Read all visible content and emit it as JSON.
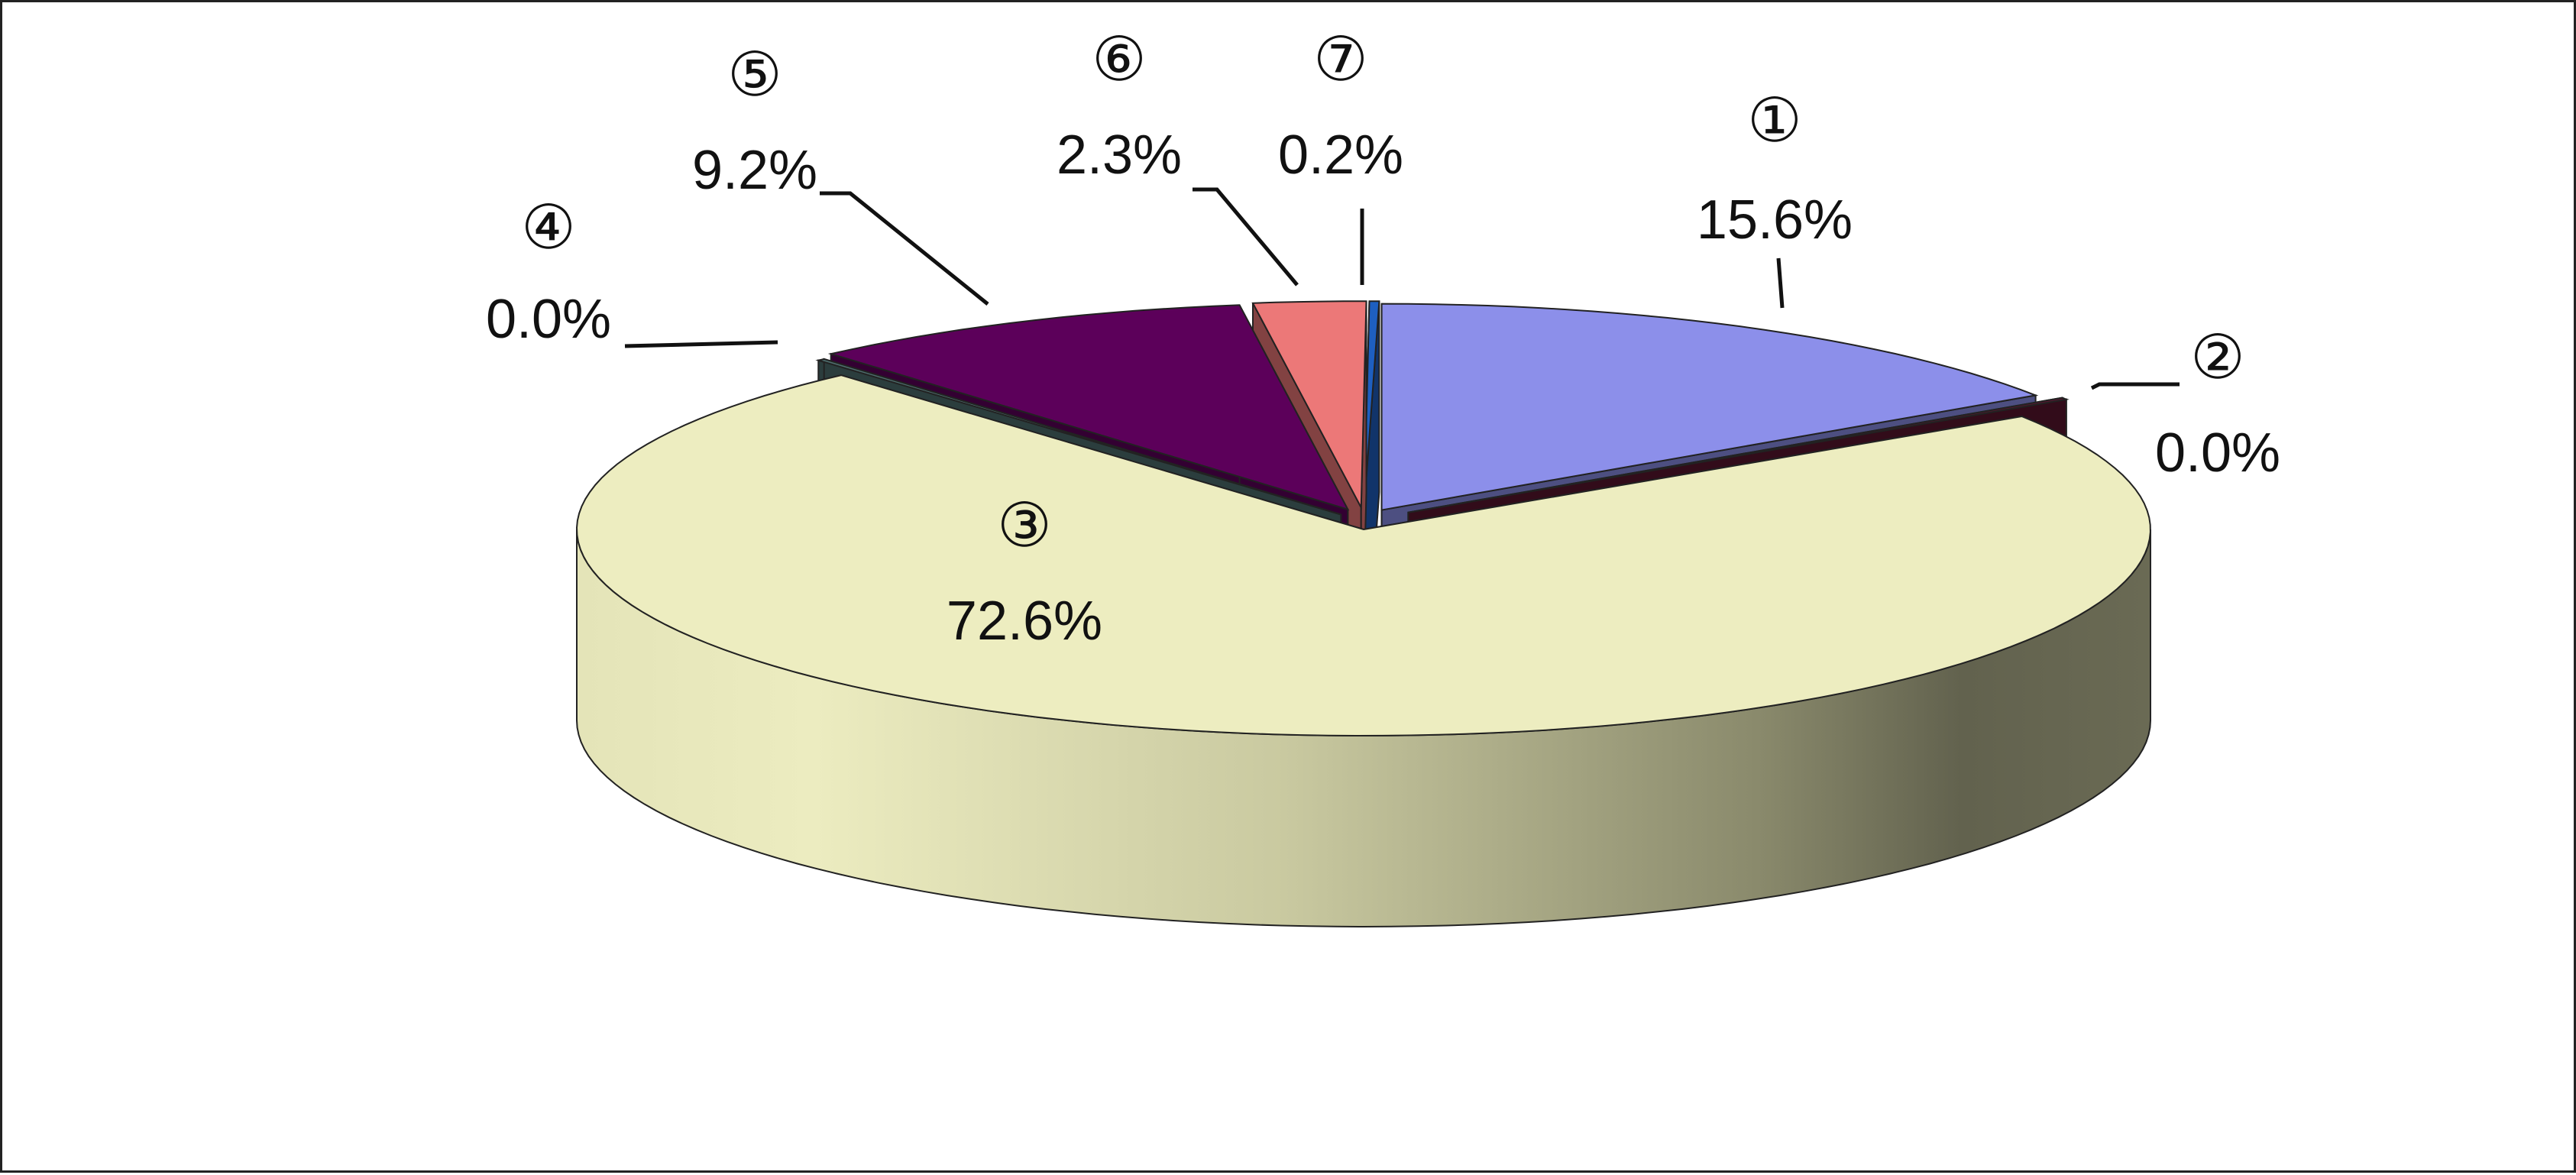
{
  "chart_data": {
    "type": "pie",
    "style": "3d-exploded",
    "legend": "none",
    "slices": [
      {
        "marker": "①",
        "value": 15.6,
        "label": "15.6%",
        "color": "#8C8FEA"
      },
      {
        "marker": "②",
        "value": 0.0,
        "label": "0.0%",
        "color": "#5A1530"
      },
      {
        "marker": "③",
        "value": 72.6,
        "label": "72.6%",
        "color": "#EDEDC0"
      },
      {
        "marker": "④",
        "value": 0.0,
        "label": "0.0%",
        "color": "#4E6E6E"
      },
      {
        "marker": "⑤",
        "value": 9.2,
        "label": "9.2%",
        "color": "#5C005A"
      },
      {
        "marker": "⑥",
        "value": 2.3,
        "label": "2.3%",
        "color": "#EC7878"
      },
      {
        "marker": "⑦",
        "value": 0.2,
        "label": "0.2%",
        "color": "#1E5FC0"
      }
    ]
  }
}
